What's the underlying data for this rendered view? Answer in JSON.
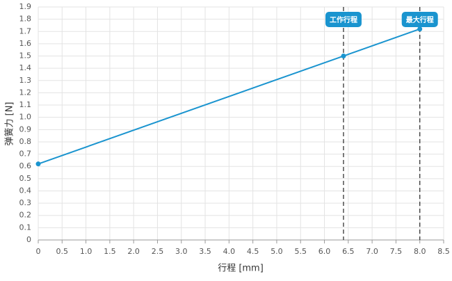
{
  "chart_data": {
    "type": "line",
    "x_label": "行程 [mm]",
    "y_label": "弹簧力 [N]",
    "x": [
      0,
      6.4,
      8
    ],
    "values": [
      0.62,
      1.5,
      1.72
    ],
    "color": "#1a94cf",
    "xlim": [
      0,
      8.5
    ],
    "ylim": [
      0,
      1.9
    ],
    "xticks": [
      0,
      0.5,
      {
        "value": 1,
        "label": "1.0"
      },
      1.5,
      {
        "value": 2,
        "label": "2.0"
      },
      2.5,
      {
        "value": 3,
        "label": "3.0"
      },
      3.5,
      {
        "value": 4,
        "label": "4.0"
      },
      4.5,
      {
        "value": 5,
        "label": "5.0"
      },
      5.5,
      {
        "value": 6,
        "label": "6.0"
      },
      6.5,
      {
        "value": 7,
        "label": "7.0"
      },
      7.5,
      {
        "value": 8,
        "label": "8.0"
      },
      8.5
    ],
    "yticks": [
      0,
      0.1,
      0.2,
      0.3,
      0.4,
      0.5,
      0.6,
      0.7,
      0.8,
      0.9,
      {
        "value": 1,
        "label": "1.0"
      },
      1.1,
      1.2,
      1.3,
      1.4,
      1.5,
      1.6,
      1.7,
      1.8,
      1.9
    ],
    "grid": true,
    "annotations": [
      {
        "x": 6.4,
        "label": "工作行程"
      },
      {
        "x": 8,
        "label": "最大行程"
      }
    ]
  }
}
